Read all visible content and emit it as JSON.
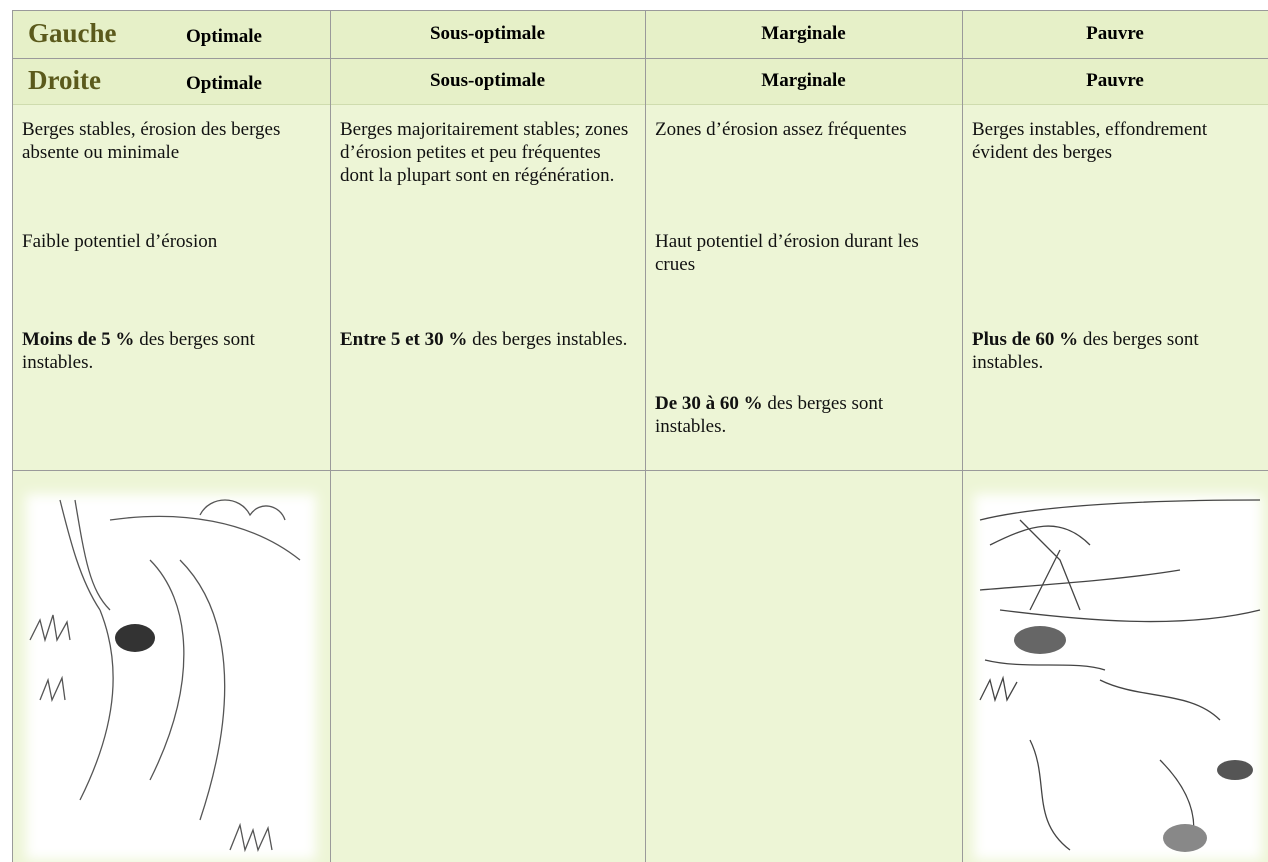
{
  "header": {
    "rows": [
      {
        "side": "Gauche",
        "cells": [
          "Optimale",
          "Sous-optimale",
          "Marginale",
          "Pauvre"
        ]
      },
      {
        "side": "Droite",
        "cells": [
          "Optimale",
          "Sous-optimale",
          "Marginale",
          "Pauvre"
        ]
      }
    ]
  },
  "table": {
    "columns": [
      {
        "paragraphs": [
          "Berges stables, érosion des berges absente ou minimale",
          "Faible potentiel d’érosion"
        ],
        "summary": {
          "bold": "Moins de 5 %",
          "rest": " des berges sont instables."
        }
      },
      {
        "paragraphs": [
          "Berges majoritairement stables; zones d’érosion petites et peu fréquentes dont la plupart sont en régénération."
        ],
        "summary": {
          "bold": "Entre 5 et 30 %",
          "rest": " des berges instables."
        }
      },
      {
        "paragraphs": [
          "Zones d’érosion assez fréquentes",
          "Haut potentiel d’érosion durant les crues"
        ],
        "summary": {
          "bold": "De 30 à 60 %",
          "rest": " des berges sont instables."
        }
      },
      {
        "paragraphs": [
          "Berges instables, effondrement évident des berges"
        ],
        "summary": {
          "bold": "Plus de 60 %",
          "rest": " des berges sont instables."
        }
      }
    ]
  }
}
